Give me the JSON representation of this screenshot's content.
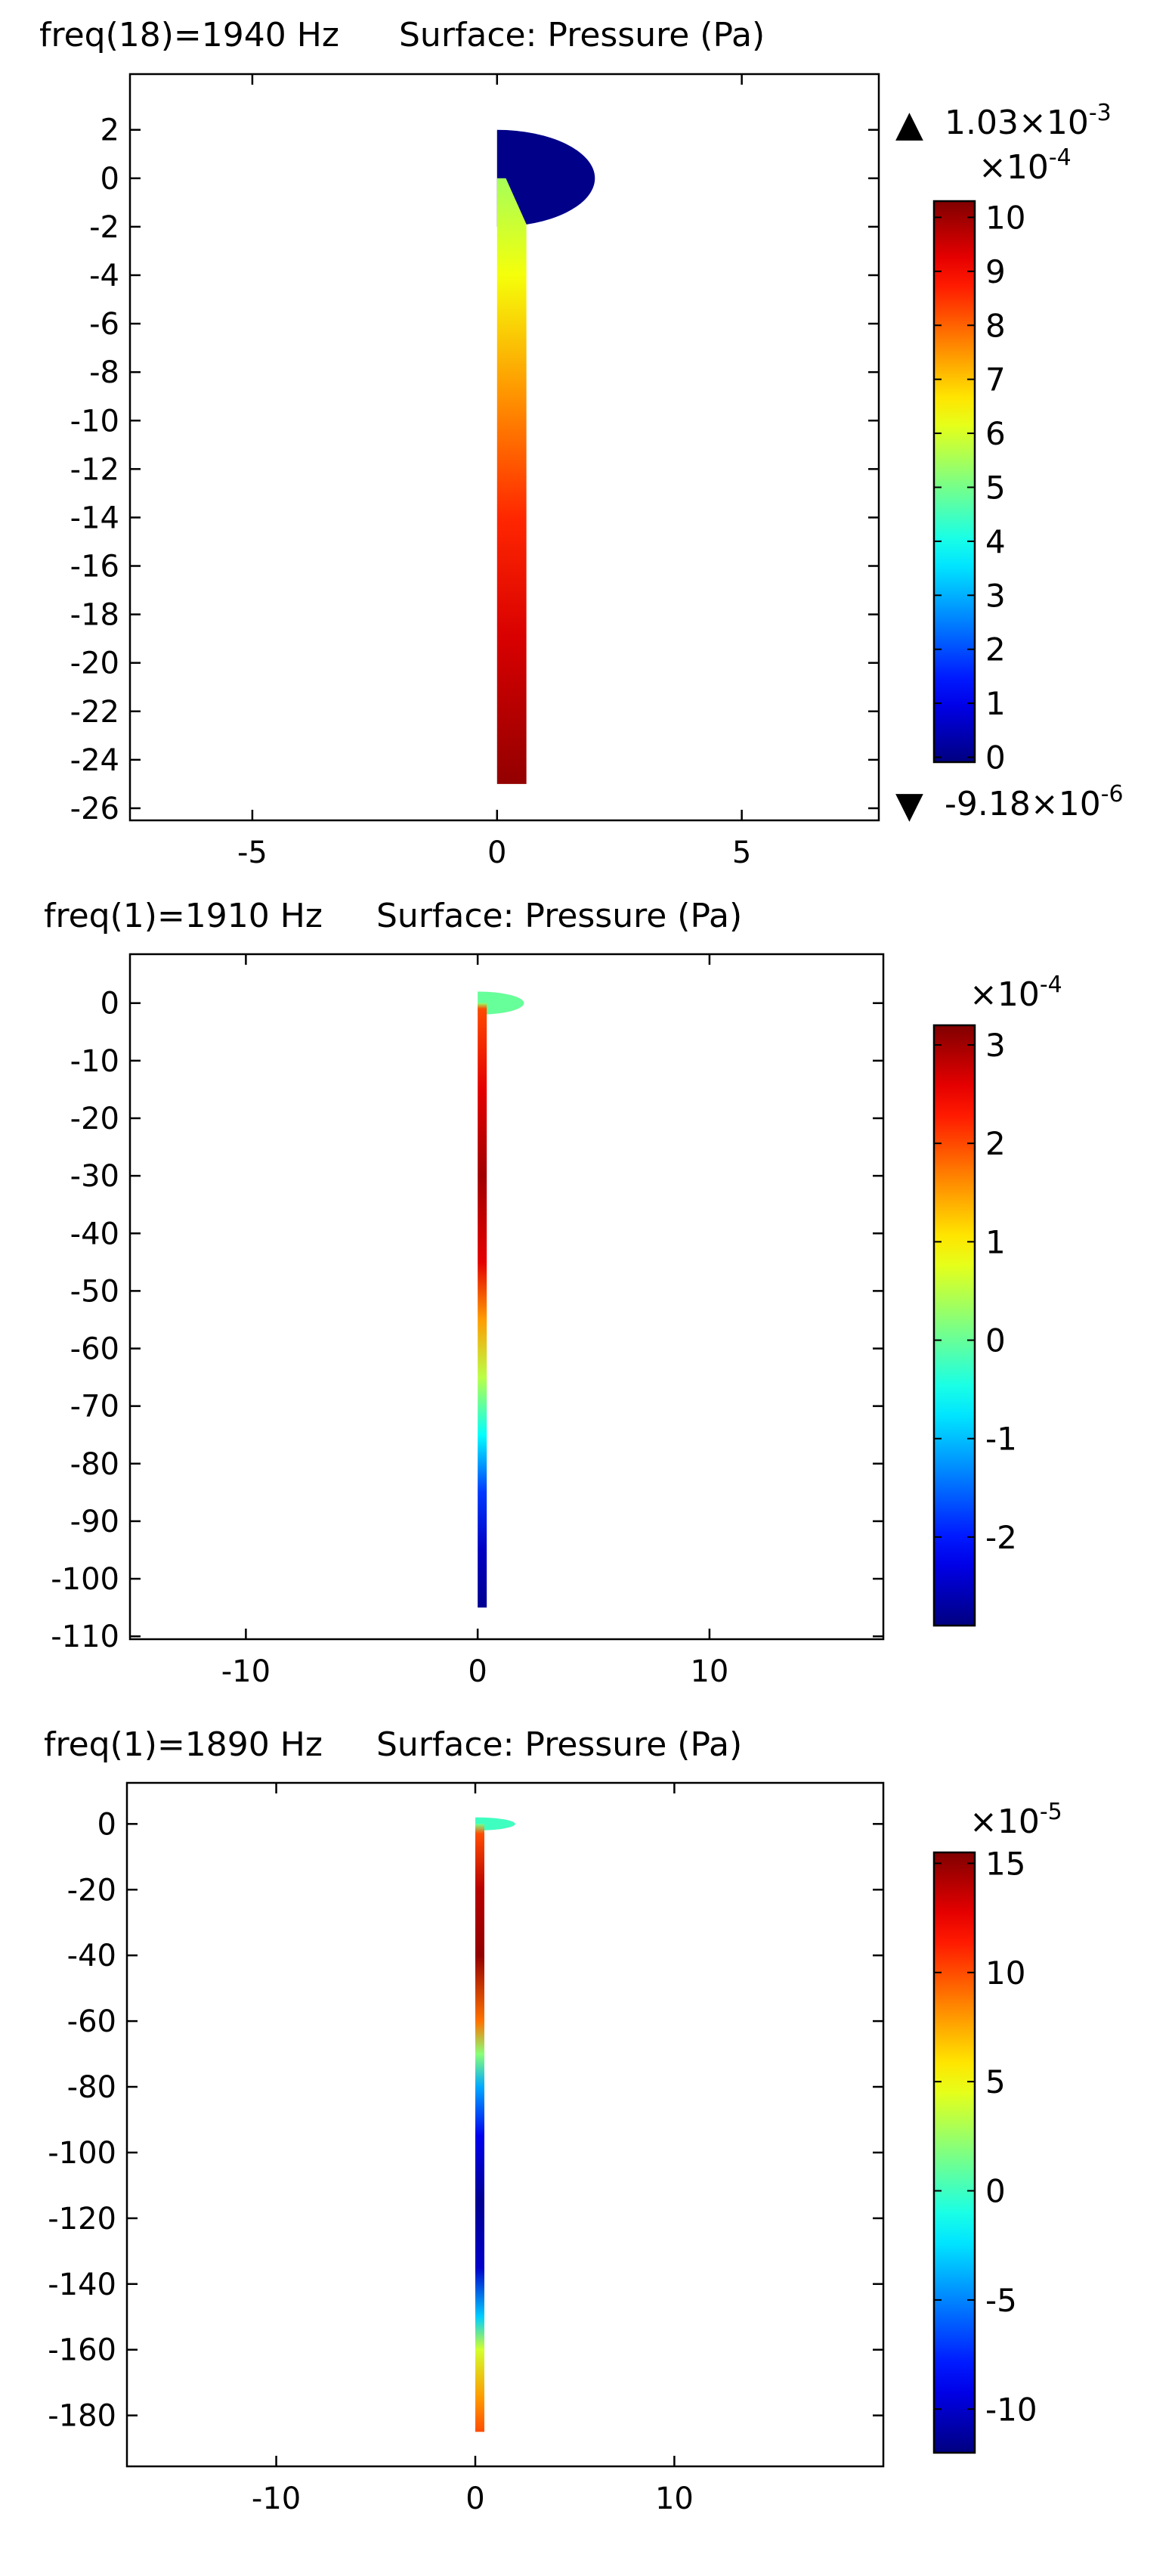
{
  "chart_data": [
    {
      "type": "surface",
      "title_left": "freq(18)=1940 Hz",
      "title_right": "Surface: Pressure (Pa)",
      "xlim": [
        -7.5,
        7.8
      ],
      "ylim": [
        -26.5,
        4.3
      ],
      "xticks": [
        -5,
        0,
        5
      ],
      "yticks": [
        2,
        0,
        -2,
        -4,
        -6,
        -8,
        -10,
        -12,
        -14,
        -16,
        -18,
        -20,
        -22,
        -24,
        -26
      ],
      "geometry": {
        "bell_radius": 2.0,
        "bell_top": 2.0,
        "tube_bottom": -25,
        "tube_width": 0.3
      },
      "colorbar": {
        "multiplier": "×10",
        "exponent": "-4",
        "ticks": [
          10,
          9,
          8,
          7,
          6,
          5,
          4,
          3,
          2,
          1,
          0
        ],
        "range": [
          -0.09,
          10.3
        ],
        "max_label": "1.03×10",
        "max_exp": "-3",
        "min_label": "-9.18×10",
        "min_exp": "-6"
      },
      "field": {
        "bell_value": 0,
        "tube_stops": [
          {
            "y": 0,
            "value": 5.5
          },
          {
            "y": -4,
            "value": 6.3
          },
          {
            "y": -9,
            "value": 7.5
          },
          {
            "y": -14,
            "value": 8.6
          },
          {
            "y": -19,
            "value": 9.4
          },
          {
            "y": -25,
            "value": 10.1
          }
        ]
      }
    },
    {
      "type": "surface",
      "title_left": "freq(1)=1910 Hz",
      "title_right": "Surface: Pressure (Pa)",
      "xlim": [
        -15.0,
        17.5
      ],
      "ylim": [
        -110.5,
        8.5
      ],
      "xticks": [
        -10,
        0,
        10
      ],
      "yticks": [
        0,
        -10,
        -20,
        -30,
        -40,
        -50,
        -60,
        -70,
        -80,
        -90,
        -100,
        -110
      ],
      "geometry": {
        "bell_radius": 2.0,
        "bell_top": 2.0,
        "tube_bottom": -105,
        "tube_width": 0.3
      },
      "colorbar": {
        "multiplier": "×10",
        "exponent": "-4",
        "ticks": [
          3,
          2,
          1,
          0,
          -1,
          -2
        ],
        "range": [
          -2.9,
          3.2
        ]
      },
      "field": {
        "bell_value": 0,
        "tube_stops": [
          {
            "y": 0,
            "value": 0.3
          },
          {
            "y": -1,
            "value": 2.0
          },
          {
            "y": -15,
            "value": 2.6
          },
          {
            "y": -30,
            "value": 3.0
          },
          {
            "y": -45,
            "value": 2.6
          },
          {
            "y": -55,
            "value": 1.5
          },
          {
            "y": -65,
            "value": 0.5
          },
          {
            "y": -75,
            "value": -0.6
          },
          {
            "y": -85,
            "value": -1.8
          },
          {
            "y": -95,
            "value": -2.5
          },
          {
            "y": -105,
            "value": -2.8
          }
        ]
      }
    },
    {
      "type": "surface",
      "title_left": "freq(1)=1890 Hz",
      "title_right": "Surface: Pressure (Pa)",
      "xlim": [
        -17.5,
        20.5
      ],
      "ylim": [
        -195.5,
        12.5
      ],
      "xticks": [
        -10,
        0,
        10
      ],
      "yticks": [
        0,
        -20,
        -40,
        -60,
        -80,
        -100,
        -120,
        -140,
        -160,
        -180
      ],
      "geometry": {
        "bell_radius": 2.0,
        "bell_top": 2.0,
        "tube_bottom": -185,
        "tube_width": 0.3
      },
      "colorbar": {
        "multiplier": "×10",
        "exponent": "-5",
        "ticks": [
          15,
          10,
          5,
          0,
          -5,
          -10
        ],
        "range": [
          -12,
          15.5
        ]
      },
      "field": {
        "bell_value": 0,
        "tube_stops": [
          {
            "y": 0,
            "value": 1.5
          },
          {
            "y": -3,
            "value": 10
          },
          {
            "y": -20,
            "value": 14
          },
          {
            "y": -40,
            "value": 15
          },
          {
            "y": -60,
            "value": 9
          },
          {
            "y": -70,
            "value": 2
          },
          {
            "y": -80,
            "value": -4
          },
          {
            "y": -95,
            "value": -9
          },
          {
            "y": -115,
            "value": -11.5
          },
          {
            "y": -135,
            "value": -10
          },
          {
            "y": -150,
            "value": -3
          },
          {
            "y": -160,
            "value": 4
          },
          {
            "y": -175,
            "value": 8
          },
          {
            "y": -185,
            "value": 10
          }
        ]
      }
    }
  ]
}
